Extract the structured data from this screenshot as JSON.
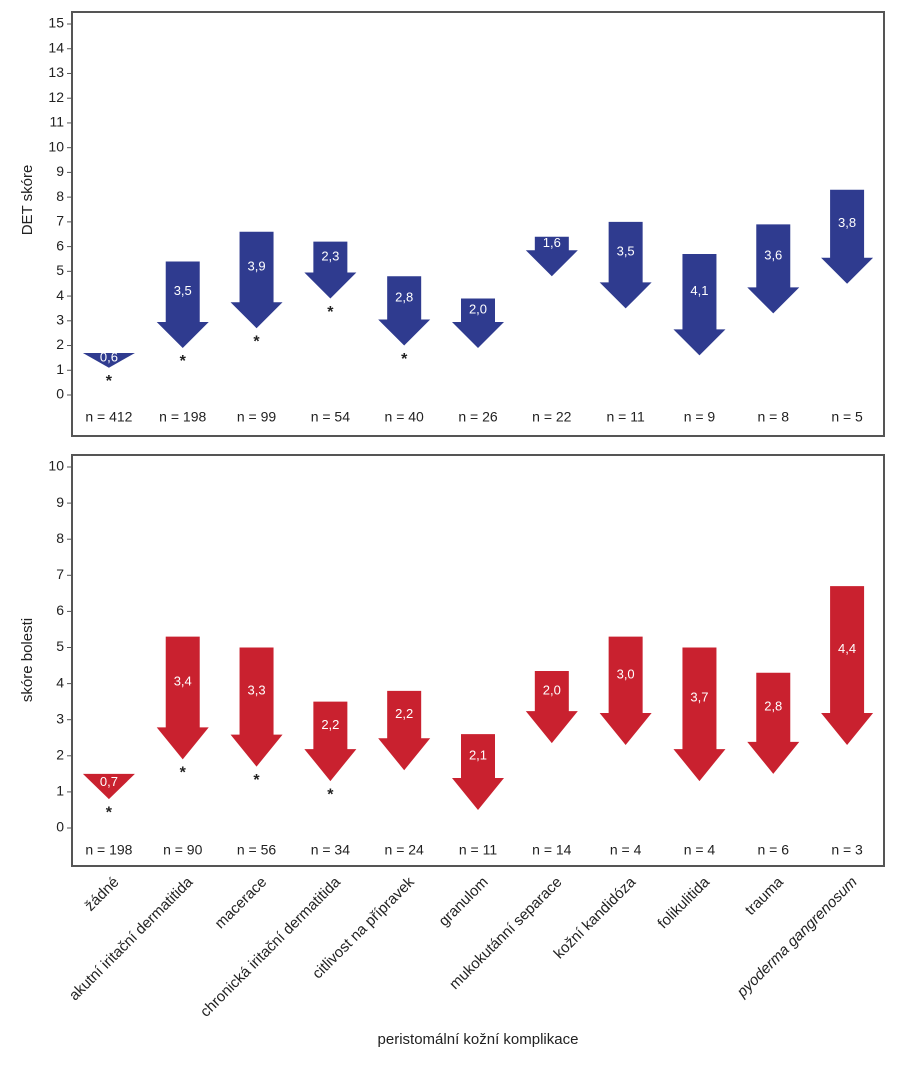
{
  "chart_data": [
    {
      "type": "arrow",
      "ylabel": "DET skóre",
      "color": "#2f3b8f",
      "ylim": [
        0,
        15
      ],
      "yticks": [
        0,
        1,
        2,
        3,
        4,
        5,
        6,
        7,
        8,
        9,
        10,
        11,
        12,
        13,
        14,
        15
      ],
      "start": [
        1.7,
        5.4,
        6.6,
        6.2,
        4.8,
        3.9,
        6.4,
        7.0,
        5.7,
        6.9,
        8.3
      ],
      "values": [
        0.6,
        3.5,
        3.9,
        2.3,
        2.8,
        2.0,
        1.6,
        3.5,
        4.1,
        3.6,
        3.8
      ],
      "value_labels": [
        "0,6",
        "3,5",
        "3,9",
        "2,3",
        "2,8",
        "2,0",
        "1,6",
        "3,5",
        "4,1",
        "3,6",
        "3,8"
      ],
      "n_labels": [
        "n = 412",
        "n = 198",
        "n = 99",
        "n = 54",
        "n = 40",
        "n = 26",
        "n = 22",
        "n = 11",
        "n = 9",
        "n = 8",
        "n = 5"
      ],
      "markers": [
        "*",
        "*",
        "*",
        "*",
        "*",
        null,
        null,
        null,
        null,
        null,
        null
      ]
    },
    {
      "type": "arrow",
      "ylabel": "skóre bolesti",
      "xlabel": "peristomální kožní komplikace",
      "color": "#c9212f",
      "ylim": [
        0,
        10
      ],
      "yticks": [
        0,
        1,
        2,
        3,
        4,
        5,
        6,
        7,
        8,
        9,
        10
      ],
      "categories": [
        "žádné",
        "akutní iritační dermatitida",
        "macerace",
        "chronická iritační dermatitida",
        "citlivost na přípravek",
        "granulom",
        "mukokutánní separace",
        "kožní kandidóza",
        "folikulitida",
        "trauma",
        "pyoderma gangrenosum"
      ],
      "start": [
        1.5,
        5.3,
        5.0,
        3.5,
        3.8,
        2.6,
        4.35,
        5.3,
        5.0,
        4.3,
        6.7
      ],
      "values": [
        0.7,
        3.4,
        3.3,
        2.2,
        2.2,
        2.1,
        2.0,
        3.0,
        3.7,
        2.8,
        4.4
      ],
      "value_labels": [
        "0,7",
        "3,4",
        "3,3",
        "2,2",
        "2,2",
        "2,1",
        "2,0",
        "3,0",
        "3,7",
        "2,8",
        "4,4"
      ],
      "n_labels": [
        "n = 198",
        "n = 90",
        "n = 56",
        "n = 34",
        "n = 24",
        "n = 11",
        "n = 14",
        "n = 4",
        "n = 4",
        "n = 6",
        "n = 3"
      ],
      "markers": [
        "*",
        "*",
        "*",
        "*",
        null,
        null,
        null,
        null,
        null,
        null,
        null
      ]
    }
  ]
}
